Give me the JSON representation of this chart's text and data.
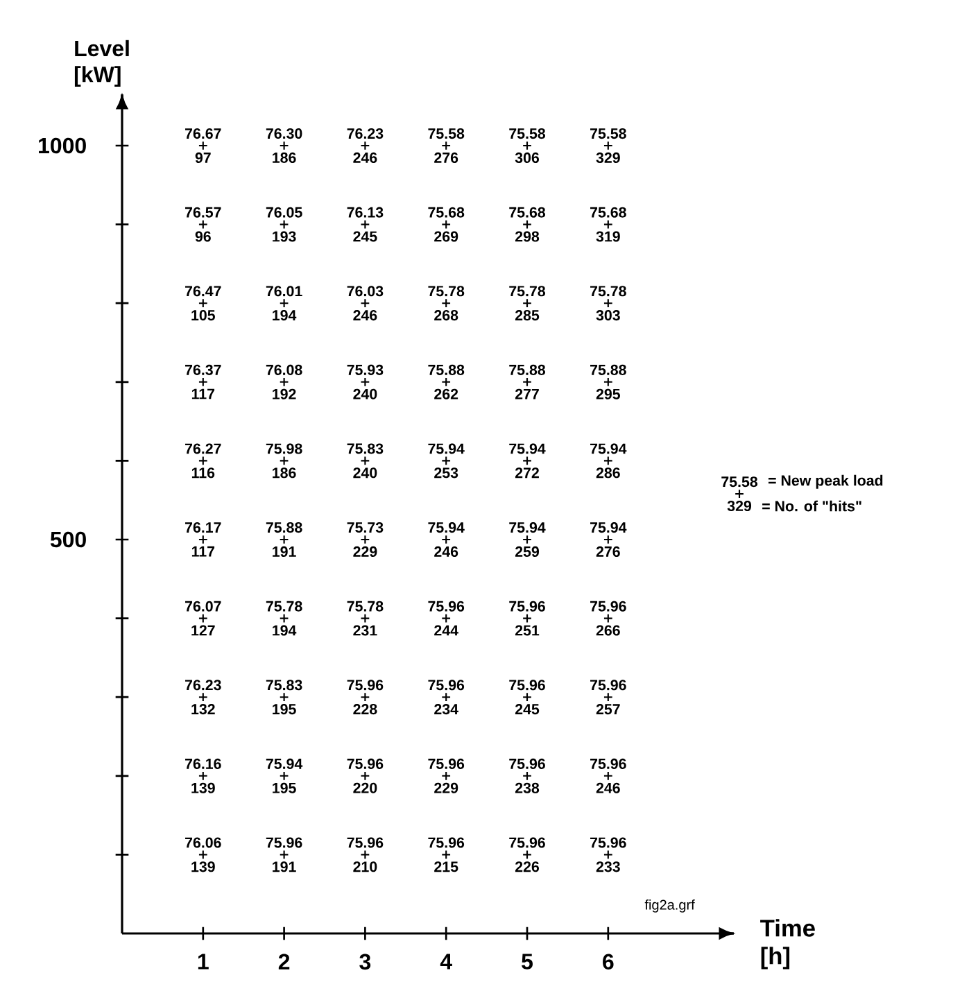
{
  "chart_data": {
    "type": "scatter",
    "xlabel": "Time [h]",
    "ylabel": "Level [kW]",
    "marker": "cross",
    "grid": false,
    "xlim": [
      0,
      7.55
    ],
    "ylim": [
      0,
      1065
    ],
    "xticks": [
      1,
      2,
      3,
      4,
      5,
      6
    ],
    "yticks": [
      {
        "value": 100,
        "label": null
      },
      {
        "value": 200,
        "label": null
      },
      {
        "value": 300,
        "label": null
      },
      {
        "value": 400,
        "label": null
      },
      500,
      {
        "value": 600,
        "label": null
      },
      {
        "value": 700,
        "label": null
      },
      {
        "value": 800,
        "label": null
      },
      {
        "value": 900,
        "label": null
      },
      1000
    ],
    "x": [
      1,
      2,
      3,
      4,
      5,
      6,
      1,
      2,
      3,
      4,
      5,
      6,
      1,
      2,
      3,
      4,
      5,
      6,
      1,
      2,
      3,
      4,
      5,
      6,
      1,
      2,
      3,
      4,
      5,
      6,
      1,
      2,
      3,
      4,
      5,
      6,
      1,
      2,
      3,
      4,
      5,
      6,
      1,
      2,
      3,
      4,
      5,
      6,
      1,
      2,
      3,
      4,
      5,
      6,
      1,
      2,
      3,
      4,
      5,
      6
    ],
    "values": [
      1000,
      1000,
      1000,
      1000,
      1000,
      1000,
      900,
      900,
      900,
      900,
      900,
      900,
      800,
      800,
      800,
      800,
      800,
      800,
      700,
      700,
      700,
      700,
      700,
      700,
      600,
      600,
      600,
      600,
      600,
      600,
      500,
      500,
      500,
      500,
      500,
      500,
      400,
      400,
      400,
      400,
      400,
      400,
      300,
      300,
      300,
      300,
      300,
      300,
      200,
      200,
      200,
      200,
      200,
      200,
      100,
      100,
      100,
      100,
      100,
      100
    ],
    "color": "#000000",
    "annotations": [
      {
        "text": "76.67",
        "x": 1,
        "y": 1000
      },
      {
        "text": "97",
        "x": 1,
        "y": 1000
      },
      {
        "text": "76.30",
        "x": 2,
        "y": 1000
      },
      {
        "text": "186",
        "x": 2,
        "y": 1000
      },
      {
        "text": "76.23",
        "x": 3,
        "y": 1000
      },
      {
        "text": "246",
        "x": 3,
        "y": 1000
      },
      {
        "text": "75.58",
        "x": 4,
        "y": 1000
      },
      {
        "text": "276",
        "x": 4,
        "y": 1000
      },
      {
        "text": "75.58",
        "x": 5,
        "y": 1000
      },
      {
        "text": "306",
        "x": 5,
        "y": 1000
      },
      {
        "text": "75.58",
        "x": 6,
        "y": 1000
      },
      {
        "text": "329",
        "x": 6,
        "y": 1000
      },
      {
        "text": "76.57",
        "x": 1,
        "y": 900
      },
      {
        "text": "96",
        "x": 1,
        "y": 900
      },
      {
        "text": "76.05",
        "x": 2,
        "y": 900
      },
      {
        "text": "193",
        "x": 2,
        "y": 900
      },
      {
        "text": "76.13",
        "x": 3,
        "y": 900
      },
      {
        "text": "245",
        "x": 3,
        "y": 900
      },
      {
        "text": "75.68",
        "x": 4,
        "y": 900
      },
      {
        "text": "269",
        "x": 4,
        "y": 900
      },
      {
        "text": "75.68",
        "x": 5,
        "y": 900
      },
      {
        "text": "298",
        "x": 5,
        "y": 900
      },
      {
        "text": "75.68",
        "x": 6,
        "y": 900
      },
      {
        "text": "319",
        "x": 6,
        "y": 900
      },
      {
        "text": "76.47",
        "x": 1,
        "y": 800
      },
      {
        "text": "105",
        "x": 1,
        "y": 800
      },
      {
        "text": "76.01",
        "x": 2,
        "y": 800
      },
      {
        "text": "194",
        "x": 2,
        "y": 800
      },
      {
        "text": "76.03",
        "x": 3,
        "y": 800
      },
      {
        "text": "246",
        "x": 3,
        "y": 800
      },
      {
        "text": "75.78",
        "x": 4,
        "y": 800
      },
      {
        "text": "268",
        "x": 4,
        "y": 800
      },
      {
        "text": "75.78",
        "x": 5,
        "y": 800
      },
      {
        "text": "285",
        "x": 5,
        "y": 800
      },
      {
        "text": "75.78",
        "x": 6,
        "y": 800
      },
      {
        "text": "303",
        "x": 6,
        "y": 800
      },
      {
        "text": "76.37",
        "x": 1,
        "y": 700
      },
      {
        "text": "117",
        "x": 1,
        "y": 700
      },
      {
        "text": "76.08",
        "x": 2,
        "y": 700
      },
      {
        "text": "192",
        "x": 2,
        "y": 700
      },
      {
        "text": "75.93",
        "x": 3,
        "y": 700
      },
      {
        "text": "240",
        "x": 3,
        "y": 700
      },
      {
        "text": "75.88",
        "x": 4,
        "y": 700
      },
      {
        "text": "262",
        "x": 4,
        "y": 700
      },
      {
        "text": "75.88",
        "x": 5,
        "y": 700
      },
      {
        "text": "277",
        "x": 5,
        "y": 700
      },
      {
        "text": "75.88",
        "x": 6,
        "y": 700
      },
      {
        "text": "295",
        "x": 6,
        "y": 700
      },
      {
        "text": "76.27",
        "x": 1,
        "y": 600
      },
      {
        "text": "116",
        "x": 1,
        "y": 600
      },
      {
        "text": "75.98",
        "x": 2,
        "y": 600
      },
      {
        "text": "186",
        "x": 2,
        "y": 600
      },
      {
        "text": "75.83",
        "x": 3,
        "y": 600
      },
      {
        "text": "240",
        "x": 3,
        "y": 600
      },
      {
        "text": "75.94",
        "x": 4,
        "y": 600
      },
      {
        "text": "253",
        "x": 4,
        "y": 600
      },
      {
        "text": "75.94",
        "x": 5,
        "y": 600
      },
      {
        "text": "272",
        "x": 5,
        "y": 600
      },
      {
        "text": "75.94",
        "x": 6,
        "y": 600
      },
      {
        "text": "286",
        "x": 6,
        "y": 600
      },
      {
        "text": "76.17",
        "x": 1,
        "y": 500
      },
      {
        "text": "117",
        "x": 1,
        "y": 500
      },
      {
        "text": "75.88",
        "x": 2,
        "y": 500
      },
      {
        "text": "191",
        "x": 2,
        "y": 500
      },
      {
        "text": "75.73",
        "x": 3,
        "y": 500
      },
      {
        "text": "229",
        "x": 3,
        "y": 500
      },
      {
        "text": "75.94",
        "x": 4,
        "y": 500
      },
      {
        "text": "246",
        "x": 4,
        "y": 500
      },
      {
        "text": "75.94",
        "x": 5,
        "y": 500
      },
      {
        "text": "259",
        "x": 5,
        "y": 500
      },
      {
        "text": "75.94",
        "x": 6,
        "y": 500
      },
      {
        "text": "276",
        "x": 6,
        "y": 500
      },
      {
        "text": "76.07",
        "x": 1,
        "y": 400
      },
      {
        "text": "127",
        "x": 1,
        "y": 400
      },
      {
        "text": "75.78",
        "x": 2,
        "y": 400
      },
      {
        "text": "194",
        "x": 2,
        "y": 400
      },
      {
        "text": "75.78",
        "x": 3,
        "y": 400
      },
      {
        "text": "231",
        "x": 3,
        "y": 400
      },
      {
        "text": "75.96",
        "x": 4,
        "y": 400
      },
      {
        "text": "244",
        "x": 4,
        "y": 400
      },
      {
        "text": "75.96",
        "x": 5,
        "y": 400
      },
      {
        "text": "251",
        "x": 5,
        "y": 400
      },
      {
        "text": "75.96",
        "x": 6,
        "y": 400
      },
      {
        "text": "266",
        "x": 6,
        "y": 400
      },
      {
        "text": "76.23",
        "x": 1,
        "y": 300
      },
      {
        "text": "132",
        "x": 1,
        "y": 300
      },
      {
        "text": "75.83",
        "x": 2,
        "y": 300
      },
      {
        "text": "195",
        "x": 2,
        "y": 300
      },
      {
        "text": "75.96",
        "x": 3,
        "y": 300
      },
      {
        "text": "228",
        "x": 3,
        "y": 300
      },
      {
        "text": "75.96",
        "x": 4,
        "y": 300
      },
      {
        "text": "234",
        "x": 4,
        "y": 300
      },
      {
        "text": "75.96",
        "x": 5,
        "y": 300
      },
      {
        "text": "245",
        "x": 5,
        "y": 300
      },
      {
        "text": "75.96",
        "x": 6,
        "y": 300
      },
      {
        "text": "257",
        "x": 6,
        "y": 300
      },
      {
        "text": "76.16",
        "x": 1,
        "y": 200
      },
      {
        "text": "139",
        "x": 1,
        "y": 200
      },
      {
        "text": "75.94",
        "x": 2,
        "y": 200
      },
      {
        "text": "195",
        "x": 2,
        "y": 200
      },
      {
        "text": "75.96",
        "x": 3,
        "y": 200
      },
      {
        "text": "220",
        "x": 3,
        "y": 200
      },
      {
        "text": "75.96",
        "x": 4,
        "y": 200
      },
      {
        "text": "229",
        "x": 4,
        "y": 200
      },
      {
        "text": "75.96",
        "x": 5,
        "y": 200
      },
      {
        "text": "238",
        "x": 5,
        "y": 200
      },
      {
        "text": "75.96",
        "x": 6,
        "y": 200
      },
      {
        "text": "246",
        "x": 6,
        "y": 200
      },
      {
        "text": "76.06",
        "x": 1,
        "y": 100
      },
      {
        "text": "139",
        "x": 1,
        "y": 100
      },
      {
        "text": "75.96",
        "x": 2,
        "y": 100
      },
      {
        "text": "191",
        "x": 2,
        "y": 100
      },
      {
        "text": "75.96",
        "x": 3,
        "y": 100
      },
      {
        "text": "210",
        "x": 3,
        "y": 100
      },
      {
        "text": "75.96",
        "x": 4,
        "y": 100
      },
      {
        "text": "215",
        "x": 4,
        "y": 100
      },
      {
        "text": "75.96",
        "x": 5,
        "y": 100
      },
      {
        "text": "226",
        "x": 5,
        "y": 100
      },
      {
        "text": "75.96",
        "x": 6,
        "y": 100
      },
      {
        "text": "233",
        "x": 6,
        "y": 100
      },
      "75.58",
      "329",
      "= New peak load",
      "= No. of \"hits\"",
      "fig2a.grf"
    ]
  }
}
